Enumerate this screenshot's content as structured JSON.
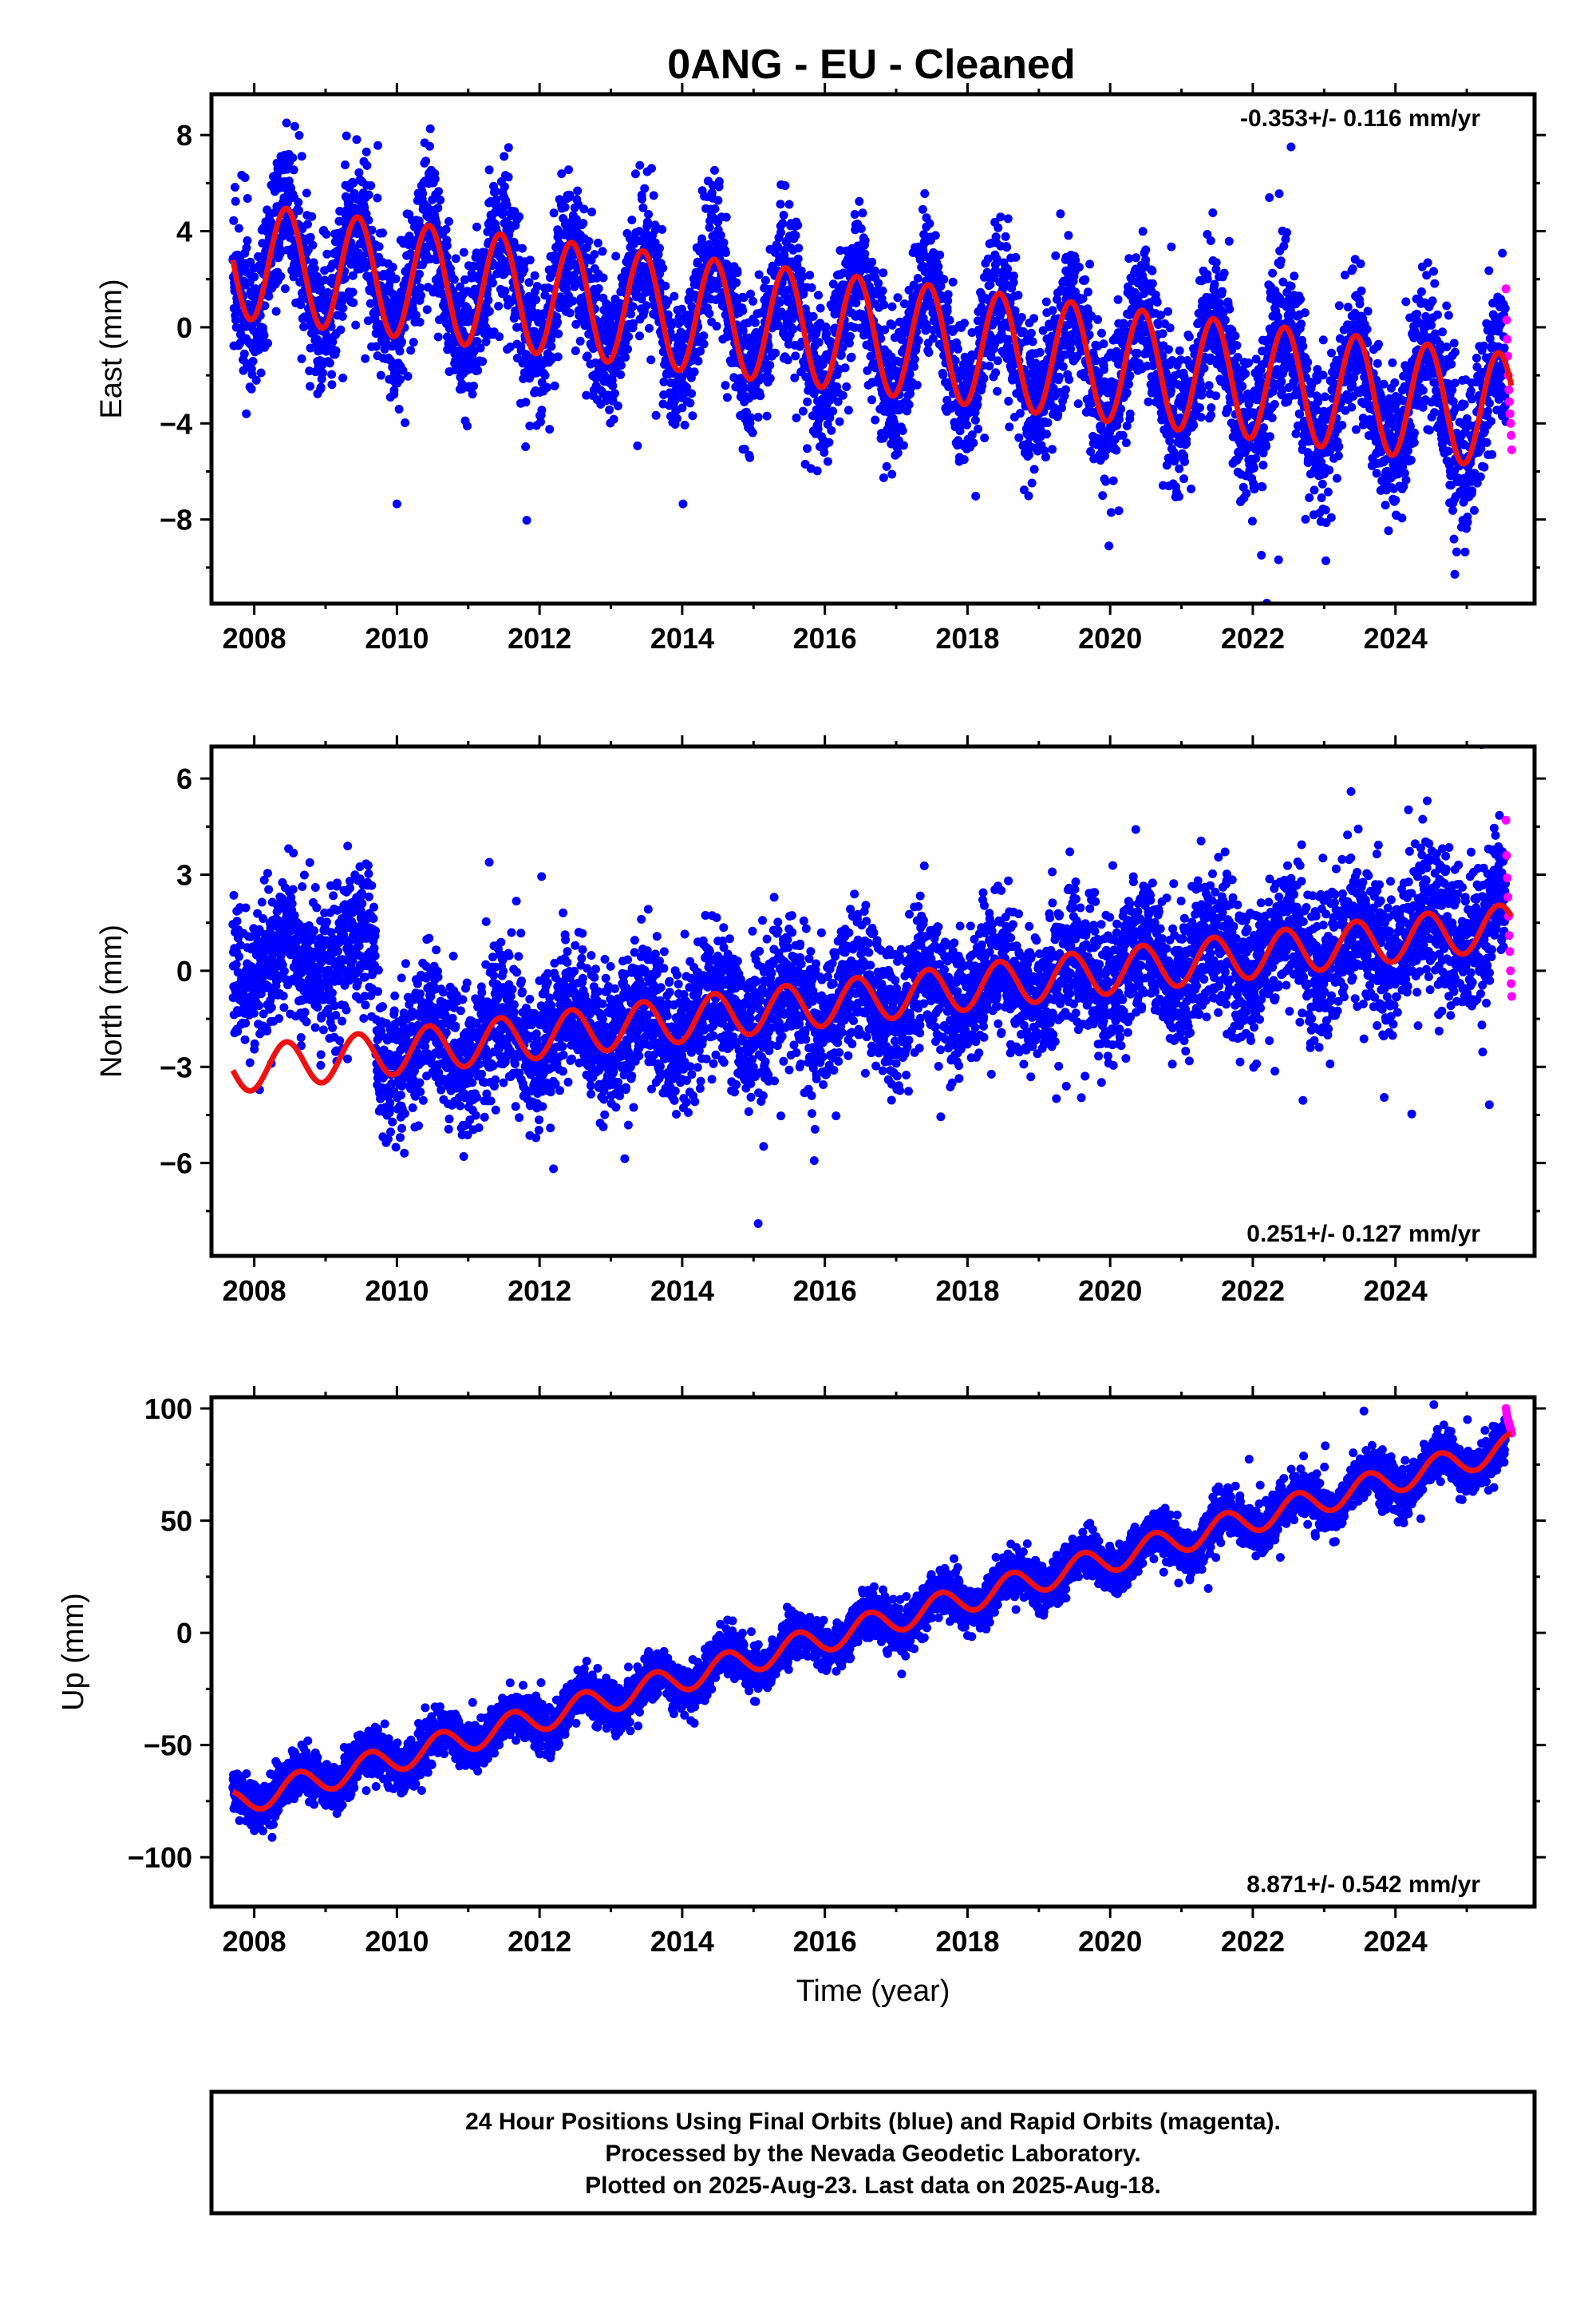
{
  "title": "0ANG  - EU - Cleaned",
  "colors": {
    "final_orbits": "#0000ff",
    "rapid_orbits": "#ff00ff",
    "model_fit": "#ee1111",
    "frame": "#000000"
  },
  "chart_data": [
    {
      "type": "scatter",
      "component": "East",
      "ylabel": "East (mm)",
      "xlabel": "",
      "rate_text": "-0.353+/- 0.116 mm/yr",
      "rate_position": "top-right",
      "xlim": [
        2007.4,
        2025.95
      ],
      "ylim": [
        -11.5,
        9.7
      ],
      "xticks": [
        2008,
        2010,
        2012,
        2014,
        2016,
        2018,
        2020,
        2022,
        2024
      ],
      "xtick_labels": [
        "2008",
        "2010",
        "2012",
        "2014",
        "2016",
        "2018",
        "2020",
        "2022",
        "2024"
      ],
      "yticks": [
        -8,
        -4,
        0,
        4,
        8
      ],
      "ytick_labels": [
        "−8",
        "−4",
        "0",
        "4",
        "8"
      ],
      "data_range": [
        2007.7,
        2025.63
      ],
      "rapid_range": [
        2025.55,
        2025.63
      ],
      "trend": {
        "rate": -0.353,
        "ref_year": 2016.5,
        "intercept": -0.3
      },
      "seasonal_amplitude": 2.4,
      "seasonal_peak": 0.45,
      "scatter_sd": 1.5,
      "rapid_points": [
        1.6,
        0.3,
        -0.5,
        -1.2,
        -2.0,
        -2.6,
        -3.1,
        -3.6,
        -4.0,
        -4.5,
        -5.1
      ]
    },
    {
      "type": "scatter",
      "component": "North",
      "ylabel": "North (mm)",
      "xlabel": "",
      "rate_text": "0.251+/- 0.127 mm/yr",
      "rate_position": "bottom-right",
      "xlim": [
        2007.4,
        2025.95
      ],
      "ylim": [
        -8.9,
        7.0
      ],
      "xticks": [
        2008,
        2010,
        2012,
        2014,
        2016,
        2018,
        2020,
        2022,
        2024
      ],
      "xtick_labels": [
        "2008",
        "2010",
        "2012",
        "2014",
        "2016",
        "2018",
        "2020",
        "2022",
        "2024"
      ],
      "yticks": [
        -6,
        -3,
        0,
        3,
        6
      ],
      "ytick_labels": [
        "−6",
        "−3",
        "0",
        "3",
        "6"
      ],
      "data_range": [
        2007.7,
        2025.63
      ],
      "rapid_range": [
        2025.55,
        2025.63
      ],
      "trend": {
        "rate": 0.251,
        "ref_year": 2016.5,
        "intercept": -0.9
      },
      "seasonal_amplitude": 0.7,
      "seasonal_peak": 0.45,
      "scatter_sd": 1.1,
      "offset_before": {
        "year": 2009.7,
        "shift": 3.3
      },
      "rapid_points": [
        4.7,
        3.6,
        2.9,
        2.3,
        1.7,
        1.1,
        0.6,
        0.0,
        -0.4,
        -0.8
      ]
    },
    {
      "type": "scatter",
      "component": "Up",
      "ylabel": "Up (mm)",
      "xlabel": "Time (year)",
      "rate_text": "8.871+/- 0.542 mm/yr",
      "rate_position": "bottom-right",
      "xlim": [
        2007.4,
        2025.95
      ],
      "ylim": [
        -122,
        105
      ],
      "xticks": [
        2008,
        2010,
        2012,
        2014,
        2016,
        2018,
        2020,
        2022,
        2024
      ],
      "xtick_labels": [
        "2008",
        "2010",
        "2012",
        "2014",
        "2016",
        "2018",
        "2020",
        "2022",
        "2024"
      ],
      "yticks": [
        -100,
        -50,
        0,
        50,
        100
      ],
      "ytick_labels": [
        "−100",
        "−50",
        "0",
        "50",
        "100"
      ],
      "data_range": [
        2007.7,
        2025.63
      ],
      "rapid_range": [
        2025.55,
        2025.63
      ],
      "trend": {
        "rate": 8.871,
        "ref_year": 2016.5,
        "intercept": 2.0
      },
      "seasonal_amplitude": 6.0,
      "seasonal_peak": 0.62,
      "scatter_sd": 5.0,
      "rapid_points": [
        100,
        98,
        96,
        95,
        94,
        93,
        92,
        91,
        90,
        89
      ]
    }
  ],
  "footer": {
    "line1": "24 Hour Positions Using Final Orbits (blue) and Rapid Orbits (magenta).",
    "line2": "Processed by the Nevada Geodetic Laboratory.",
    "line3": "Plotted on 2025-Aug-23. Last data on 2025-Aug-18."
  }
}
